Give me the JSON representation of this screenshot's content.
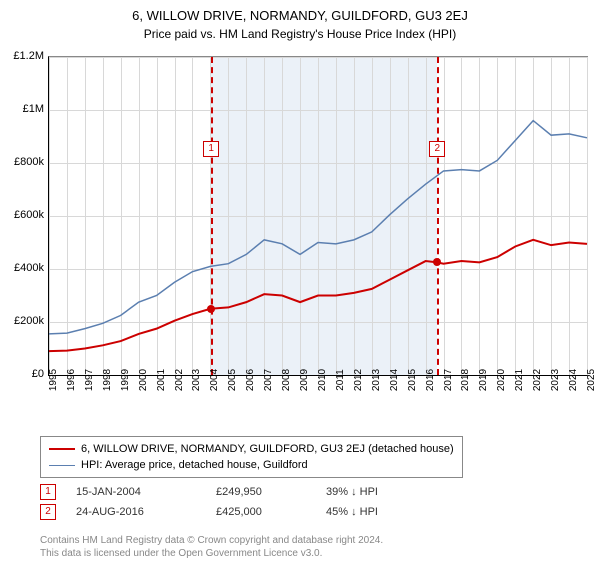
{
  "title": "6, WILLOW DRIVE, NORMANDY, GUILDFORD, GU3 2EJ",
  "subtitle": "Price paid vs. HM Land Registry's House Price Index (HPI)",
  "chart": {
    "type": "line",
    "background_color": "#ffffff",
    "grid_color": "#d8d8d8",
    "shade_color": "#e8eef7",
    "ylim": [
      0,
      1200000
    ],
    "ytick_step": 200000,
    "yticks": [
      "£0",
      "£200k",
      "£400k",
      "£600k",
      "£800k",
      "£1M",
      "£1.2M"
    ],
    "x_years": [
      1995,
      1996,
      1997,
      1998,
      1999,
      2000,
      2001,
      2002,
      2003,
      2004,
      2005,
      2006,
      2007,
      2008,
      2009,
      2010,
      2011,
      2012,
      2013,
      2014,
      2015,
      2016,
      2017,
      2018,
      2019,
      2020,
      2021,
      2022,
      2023,
      2024,
      2025
    ],
    "shade_from_year": 2004.04,
    "shade_to_year": 2016.65,
    "series": [
      {
        "name": "price_paid",
        "color": "#cc0000",
        "width": 2,
        "legend": "6, WILLOW DRIVE, NORMANDY, GUILDFORD, GU3 2EJ (detached house)",
        "points": [
          [
            1995,
            90000
          ],
          [
            1996,
            92000
          ],
          [
            1997,
            100000
          ],
          [
            1998,
            112000
          ],
          [
            1999,
            128000
          ],
          [
            2000,
            155000
          ],
          [
            2001,
            175000
          ],
          [
            2002,
            205000
          ],
          [
            2003,
            230000
          ],
          [
            2004,
            249950
          ],
          [
            2005,
            255000
          ],
          [
            2006,
            275000
          ],
          [
            2007,
            305000
          ],
          [
            2008,
            300000
          ],
          [
            2009,
            275000
          ],
          [
            2010,
            300000
          ],
          [
            2011,
            300000
          ],
          [
            2012,
            310000
          ],
          [
            2013,
            325000
          ],
          [
            2014,
            360000
          ],
          [
            2015,
            395000
          ],
          [
            2016,
            430000
          ],
          [
            2016.65,
            425000
          ],
          [
            2017,
            420000
          ],
          [
            2018,
            430000
          ],
          [
            2019,
            425000
          ],
          [
            2020,
            445000
          ],
          [
            2021,
            485000
          ],
          [
            2022,
            510000
          ],
          [
            2023,
            490000
          ],
          [
            2024,
            500000
          ],
          [
            2025,
            495000
          ]
        ]
      },
      {
        "name": "hpi",
        "color": "#5b7fb0",
        "width": 1.5,
        "legend": "HPI: Average price, detached house, Guildford",
        "points": [
          [
            1995,
            155000
          ],
          [
            1996,
            158000
          ],
          [
            1997,
            175000
          ],
          [
            1998,
            195000
          ],
          [
            1999,
            225000
          ],
          [
            2000,
            275000
          ],
          [
            2001,
            300000
          ],
          [
            2002,
            350000
          ],
          [
            2003,
            390000
          ],
          [
            2004,
            410000
          ],
          [
            2005,
            420000
          ],
          [
            2006,
            455000
          ],
          [
            2007,
            510000
          ],
          [
            2008,
            495000
          ],
          [
            2009,
            455000
          ],
          [
            2010,
            500000
          ],
          [
            2011,
            495000
          ],
          [
            2012,
            510000
          ],
          [
            2013,
            540000
          ],
          [
            2014,
            605000
          ],
          [
            2015,
            665000
          ],
          [
            2016,
            720000
          ],
          [
            2017,
            770000
          ],
          [
            2018,
            775000
          ],
          [
            2019,
            770000
          ],
          [
            2020,
            810000
          ],
          [
            2021,
            885000
          ],
          [
            2022,
            960000
          ],
          [
            2023,
            905000
          ],
          [
            2024,
            910000
          ],
          [
            2025,
            895000
          ]
        ]
      }
    ],
    "sale_markers": [
      {
        "num": "1",
        "year": 2004.04,
        "price": 249950
      },
      {
        "num": "2",
        "year": 2016.65,
        "price": 425000
      }
    ]
  },
  "sales": [
    {
      "num": "1",
      "date": "15-JAN-2004",
      "price": "£249,950",
      "pct": "39%  ↓  HPI"
    },
    {
      "num": "2",
      "date": "24-AUG-2016",
      "price": "£425,000",
      "pct": "45%  ↓  HPI"
    }
  ],
  "footnote_line1": "Contains HM Land Registry data © Crown copyright and database right 2024.",
  "footnote_line2": "This data is licensed under the Open Government Licence v3.0."
}
